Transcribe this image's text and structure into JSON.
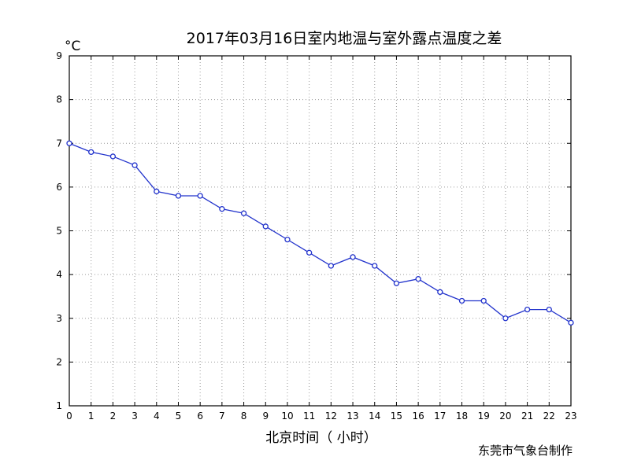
{
  "chart_data": {
    "type": "line",
    "title": "2017年03月16日室内地温与室外露点温度之差",
    "xlabel": "北京时间（ 小时）",
    "ylabel_unit": "°C",
    "credit": "东莞市气象台制作",
    "x": [
      0,
      1,
      2,
      3,
      4,
      5,
      6,
      7,
      8,
      9,
      10,
      11,
      12,
      13,
      14,
      15,
      16,
      17,
      18,
      19,
      20,
      21,
      22,
      23
    ],
    "x_tick_labels": [
      "0",
      "1",
      "2",
      "3",
      "4",
      "5",
      "6",
      "7",
      "8",
      "9",
      "10",
      "11",
      "12",
      "13",
      "14",
      "15",
      "16",
      "17",
      "18",
      "19",
      "20",
      "21",
      "22",
      "23"
    ],
    "y_tick_labels": [
      "1",
      "2",
      "3",
      "4",
      "5",
      "6",
      "7",
      "8",
      "9"
    ],
    "y_ticks": [
      1,
      2,
      3,
      4,
      5,
      6,
      7,
      8,
      9
    ],
    "series": [
      {
        "values": [
          7.0,
          6.8,
          6.7,
          6.5,
          5.9,
          5.8,
          5.8,
          5.5,
          5.4,
          5.1,
          4.8,
          4.5,
          4.2,
          4.4,
          4.2,
          3.8,
          3.9,
          3.6,
          3.4,
          3.4,
          3.0,
          3.2,
          3.2,
          2.9
        ],
        "color": "#2233cc",
        "marker": "circle"
      }
    ],
    "xlim": [
      0,
      23
    ],
    "ylim": [
      1,
      9
    ],
    "grid": true,
    "grid_style": "dotted"
  }
}
